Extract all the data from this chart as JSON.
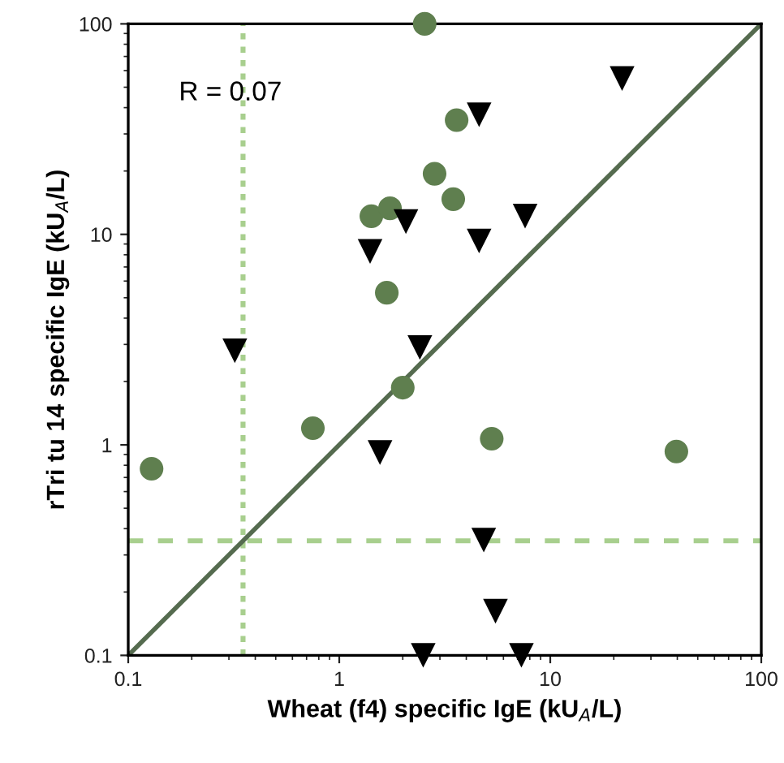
{
  "chart_data": {
    "type": "scatter",
    "xlabel": "Wheat (f4) specific IgE (kU$_{A}$/L)",
    "ylabel": "rTri tu 14 specific IgE (kU$_{A}$/L)",
    "log": "xy",
    "xlim": [
      0.1,
      100
    ],
    "ylim": [
      0.1,
      100
    ],
    "xticks": [
      0.1,
      1,
      10,
      100
    ],
    "yticks": [
      0.1,
      1,
      10,
      100
    ],
    "grid": false,
    "legend": false,
    "annotations": [
      "R = 0.07"
    ],
    "ref_lines": [
      {
        "axis": "x",
        "value": 0.35,
        "color": "#a8cf8e",
        "line_style": "dotted"
      },
      {
        "axis": "y",
        "value": 0.35,
        "color": "#a8cf8e",
        "line_style": "dashed"
      }
    ],
    "series": [
      {
        "type": "line",
        "color": "#556b4f",
        "marker": "none",
        "line_style": "solid",
        "x": [
          0.1,
          100
        ],
        "values": [
          0.1,
          100
        ]
      },
      {
        "color": "#5f7f4f",
        "marker": "circle",
        "x": [
          2.54,
          3.6,
          2.83,
          3.47,
          1.42,
          1.74,
          1.68,
          0.129,
          0.75,
          2.0,
          5.28,
          39.6
        ],
        "values": [
          100,
          34.9,
          19.4,
          14.7,
          12.2,
          13.3,
          5.28,
          0.77,
          1.2,
          1.87,
          1.07,
          0.93
        ]
      },
      {
        "color": "#000000",
        "marker": "triangle",
        "x": [
          21.9,
          4.6,
          2.07,
          7.6,
          4.6,
          1.4,
          0.32,
          2.41,
          1.56,
          4.84,
          5.5,
          2.5,
          7.3
        ],
        "values": [
          55,
          37,
          11.5,
          12.2,
          9.3,
          8.3,
          2.8,
          2.9,
          0.92,
          0.353,
          0.162,
          0.1,
          0.1
        ]
      }
    ]
  }
}
